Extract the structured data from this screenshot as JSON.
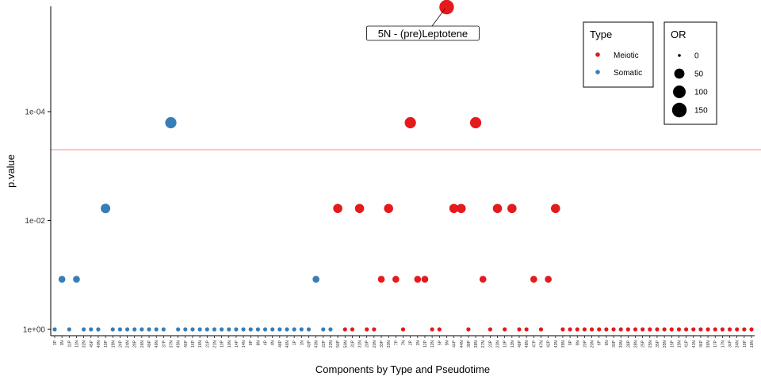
{
  "chart_data": {
    "type": "scatter",
    "title": "",
    "xlabel": "Components by Type and Pseudotime",
    "ylabel": "p.value",
    "y_scale": "log10-reversed",
    "y_ticks": [
      "1e+00",
      "1e-02",
      "1e-04"
    ],
    "y_tick_values": [
      1,
      0.01,
      0.0001
    ],
    "threshold_line": {
      "value": 0.0005,
      "color": "#F8766D"
    },
    "grid": false,
    "annotation": {
      "label": "5N - (pre)Leptotene",
      "target_category": "5N"
    },
    "legend_type": {
      "title": "Type",
      "placement": "top-right",
      "items": [
        {
          "label": "Meiotic",
          "color": "#E41A1C"
        },
        {
          "label": "Somatic",
          "color": "#377EB8"
        }
      ]
    },
    "legend_or": {
      "title": "OR",
      "placement": "top-right",
      "items": [
        {
          "label": "0",
          "value": 0
        },
        {
          "label": "50",
          "value": 50
        },
        {
          "label": "100",
          "value": 100
        },
        {
          "label": "150",
          "value": 150
        }
      ]
    },
    "categories": [
      "3P",
      "3N",
      "11P",
      "11N",
      "32N",
      "45P",
      "40N",
      "19P",
      "19N",
      "24P",
      "24N",
      "29P",
      "26N",
      "49P",
      "49N",
      "37P",
      "37N",
      "45N",
      "46P",
      "16P",
      "16N",
      "21P",
      "21N",
      "10P",
      "10N",
      "14P",
      "14N",
      "8P",
      "8N",
      "4P",
      "4N",
      "48P",
      "46N",
      "1P",
      "1N",
      "43P",
      "43N",
      "22P",
      "22N",
      "50P",
      "50N",
      "31P",
      "31N",
      "20P",
      "20N",
      "33P",
      "33N",
      "7P",
      "7N",
      "2P",
      "2N",
      "12P",
      "12N",
      "5P",
      "5N",
      "44P",
      "44N",
      "39P",
      "38N",
      "27N",
      "23P",
      "23N",
      "13P",
      "13N",
      "48P",
      "48N",
      "47P",
      "47N",
      "42P",
      "42N",
      "39N",
      "9P",
      "9N",
      "20P",
      "20N",
      "6P",
      "6N",
      "30P",
      "30N",
      "28P",
      "28N",
      "25P",
      "25N",
      "35P",
      "35N",
      "15P",
      "15N",
      "41P",
      "41N",
      "36P",
      "36N",
      "17P",
      "17N",
      "34P",
      "34N",
      "18P",
      "18N"
    ],
    "points": [
      {
        "category": "3P",
        "type": "Somatic",
        "p": 1,
        "or": 0
      },
      {
        "category": "3N",
        "type": "Somatic",
        "p": 0.12,
        "or": 10
      },
      {
        "category": "11P",
        "type": "Somatic",
        "p": 1,
        "or": 0
      },
      {
        "category": "11N",
        "type": "Somatic",
        "p": 0.12,
        "or": 10
      },
      {
        "category": "32N",
        "type": "Somatic",
        "p": 1,
        "or": 0
      },
      {
        "category": "45P",
        "type": "Somatic",
        "p": 1,
        "or": 0
      },
      {
        "category": "40N",
        "type": "Somatic",
        "p": 1,
        "or": 0
      },
      {
        "category": "19P",
        "type": "Somatic",
        "p": 0.006,
        "or": 40
      },
      {
        "category": "19N",
        "type": "Somatic",
        "p": 1,
        "or": 0
      },
      {
        "category": "24P",
        "type": "Somatic",
        "p": 1,
        "or": 0
      },
      {
        "category": "24N",
        "type": "Somatic",
        "p": 1,
        "or": 0
      },
      {
        "category": "29P",
        "type": "Somatic",
        "p": 1,
        "or": 0
      },
      {
        "category": "26N",
        "type": "Somatic",
        "p": 1,
        "or": 0
      },
      {
        "category": "49P",
        "type": "Somatic",
        "p": 1,
        "or": 0
      },
      {
        "category": "49N",
        "type": "Somatic",
        "p": 1,
        "or": 0
      },
      {
        "category": "37P",
        "type": "Somatic",
        "p": 1,
        "or": 0
      },
      {
        "category": "37N",
        "type": "Somatic",
        "p": 0.00016,
        "or": 70
      },
      {
        "category": "45N",
        "type": "Somatic",
        "p": 1,
        "or": 0
      },
      {
        "category": "46P",
        "type": "Somatic",
        "p": 1,
        "or": 0
      },
      {
        "category": "16P",
        "type": "Somatic",
        "p": 1,
        "or": 0
      },
      {
        "category": "16N",
        "type": "Somatic",
        "p": 1,
        "or": 0
      },
      {
        "category": "21P",
        "type": "Somatic",
        "p": 1,
        "or": 0
      },
      {
        "category": "21N",
        "type": "Somatic",
        "p": 1,
        "or": 0
      },
      {
        "category": "10P",
        "type": "Somatic",
        "p": 1,
        "or": 0
      },
      {
        "category": "10N",
        "type": "Somatic",
        "p": 1,
        "or": 0
      },
      {
        "category": "14P",
        "type": "Somatic",
        "p": 1,
        "or": 0
      },
      {
        "category": "14N",
        "type": "Somatic",
        "p": 1,
        "or": 0
      },
      {
        "category": "8P",
        "type": "Somatic",
        "p": 1,
        "or": 0
      },
      {
        "category": "8N",
        "type": "Somatic",
        "p": 1,
        "or": 0
      },
      {
        "category": "4P",
        "type": "Somatic",
        "p": 1,
        "or": 0
      },
      {
        "category": "4N",
        "type": "Somatic",
        "p": 1,
        "or": 0
      },
      {
        "category": "48P",
        "type": "Somatic",
        "p": 1,
        "or": 0
      },
      {
        "category": "46N",
        "type": "Somatic",
        "p": 1,
        "or": 0
      },
      {
        "category": "1P",
        "type": "Somatic",
        "p": 1,
        "or": 0
      },
      {
        "category": "1N",
        "type": "Somatic",
        "p": 1,
        "or": 0
      },
      {
        "category": "43P",
        "type": "Somatic",
        "p": 1,
        "or": 0
      },
      {
        "category": "43N",
        "type": "Somatic",
        "p": 0.12,
        "or": 10
      },
      {
        "category": "22P",
        "type": "Somatic",
        "p": 1,
        "or": 0
      },
      {
        "category": "22N",
        "type": "Somatic",
        "p": 1,
        "or": 0
      },
      {
        "category": "50P",
        "type": "Meiotic",
        "p": 0.006,
        "or": 35
      },
      {
        "category": "50N",
        "type": "Meiotic",
        "p": 1,
        "or": 0
      },
      {
        "category": "31P",
        "type": "Meiotic",
        "p": 1,
        "or": 0
      },
      {
        "category": "31N",
        "type": "Meiotic",
        "p": 0.006,
        "or": 35
      },
      {
        "category": "20P",
        "type": "Meiotic",
        "p": 1,
        "or": 0
      },
      {
        "category": "20N",
        "type": "Meiotic",
        "p": 1,
        "or": 0
      },
      {
        "category": "33P",
        "type": "Meiotic",
        "p": 0.12,
        "or": 10
      },
      {
        "category": "33N",
        "type": "Meiotic",
        "p": 0.006,
        "or": 35
      },
      {
        "category": "7P",
        "type": "Meiotic",
        "p": 0.12,
        "or": 10
      },
      {
        "category": "7N",
        "type": "Meiotic",
        "p": 1,
        "or": 0
      },
      {
        "category": "2P",
        "type": "Meiotic",
        "p": 0.00016,
        "or": 70
      },
      {
        "category": "2N",
        "type": "Meiotic",
        "p": 0.12,
        "or": 10
      },
      {
        "category": "12P",
        "type": "Meiotic",
        "p": 0.12,
        "or": 10
      },
      {
        "category": "12N",
        "type": "Meiotic",
        "p": 1,
        "or": 0
      },
      {
        "category": "5P",
        "type": "Meiotic",
        "p": 1,
        "or": 0
      },
      {
        "category": "5N",
        "type": "Meiotic",
        "p": 1.2e-06,
        "or": 150
      },
      {
        "category": "44P",
        "type": "Meiotic",
        "p": 0.006,
        "or": 35
      },
      {
        "category": "44N",
        "type": "Meiotic",
        "p": 0.006,
        "or": 35
      },
      {
        "category": "39P",
        "type": "Meiotic",
        "p": 1,
        "or": 0
      },
      {
        "category": "38N",
        "type": "Meiotic",
        "p": 0.00016,
        "or": 70
      },
      {
        "category": "27N",
        "type": "Meiotic",
        "p": 0.12,
        "or": 10
      },
      {
        "category": "23P",
        "type": "Meiotic",
        "p": 1,
        "or": 0
      },
      {
        "category": "23N",
        "type": "Meiotic",
        "p": 0.006,
        "or": 35
      },
      {
        "category": "13P",
        "type": "Meiotic",
        "p": 1,
        "or": 0
      },
      {
        "category": "13N",
        "type": "Meiotic",
        "p": 0.006,
        "or": 35
      },
      {
        "category": "48P",
        "type": "Meiotic",
        "p": 1,
        "or": 0
      },
      {
        "category": "48N",
        "type": "Meiotic",
        "p": 1,
        "or": 0
      },
      {
        "category": "47P",
        "type": "Meiotic",
        "p": 0.12,
        "or": 10
      },
      {
        "category": "47N",
        "type": "Meiotic",
        "p": 1,
        "or": 0
      },
      {
        "category": "42P",
        "type": "Meiotic",
        "p": 0.12,
        "or": 10
      },
      {
        "category": "42N",
        "type": "Meiotic",
        "p": 0.006,
        "or": 35
      },
      {
        "category": "39N",
        "type": "Meiotic",
        "p": 1,
        "or": 0
      },
      {
        "category": "9P",
        "type": "Meiotic",
        "p": 1,
        "or": 0
      },
      {
        "category": "9N",
        "type": "Meiotic",
        "p": 1,
        "or": 0
      },
      {
        "category": "20P",
        "type": "Meiotic",
        "p": 1,
        "or": 0
      },
      {
        "category": "20N",
        "type": "Meiotic",
        "p": 1,
        "or": 0
      },
      {
        "category": "6P",
        "type": "Meiotic",
        "p": 1,
        "or": 0
      },
      {
        "category": "6N",
        "type": "Meiotic",
        "p": 1,
        "or": 0
      },
      {
        "category": "30P",
        "type": "Meiotic",
        "p": 1,
        "or": 0
      },
      {
        "category": "30N",
        "type": "Meiotic",
        "p": 1,
        "or": 0
      },
      {
        "category": "28P",
        "type": "Meiotic",
        "p": 1,
        "or": 0
      },
      {
        "category": "28N",
        "type": "Meiotic",
        "p": 1,
        "or": 0
      },
      {
        "category": "25P",
        "type": "Meiotic",
        "p": 1,
        "or": 0
      },
      {
        "category": "25N",
        "type": "Meiotic",
        "p": 1,
        "or": 0
      },
      {
        "category": "35P",
        "type": "Meiotic",
        "p": 1,
        "or": 0
      },
      {
        "category": "35N",
        "type": "Meiotic",
        "p": 1,
        "or": 0
      },
      {
        "category": "15P",
        "type": "Meiotic",
        "p": 1,
        "or": 0
      },
      {
        "category": "15N",
        "type": "Meiotic",
        "p": 1,
        "or": 0
      },
      {
        "category": "41P",
        "type": "Meiotic",
        "p": 1,
        "or": 0
      },
      {
        "category": "41N",
        "type": "Meiotic",
        "p": 1,
        "or": 0
      },
      {
        "category": "36P",
        "type": "Meiotic",
        "p": 1,
        "or": 0
      },
      {
        "category": "36N",
        "type": "Meiotic",
        "p": 1,
        "or": 0
      },
      {
        "category": "17P",
        "type": "Meiotic",
        "p": 1,
        "or": 0
      },
      {
        "category": "17N",
        "type": "Meiotic",
        "p": 1,
        "or": 0
      },
      {
        "category": "34P",
        "type": "Meiotic",
        "p": 1,
        "or": 0
      },
      {
        "category": "34N",
        "type": "Meiotic",
        "p": 1,
        "or": 0
      },
      {
        "category": "18P",
        "type": "Meiotic",
        "p": 1,
        "or": 0
      },
      {
        "category": "18N",
        "type": "Meiotic",
        "p": 1,
        "or": 0
      }
    ]
  }
}
